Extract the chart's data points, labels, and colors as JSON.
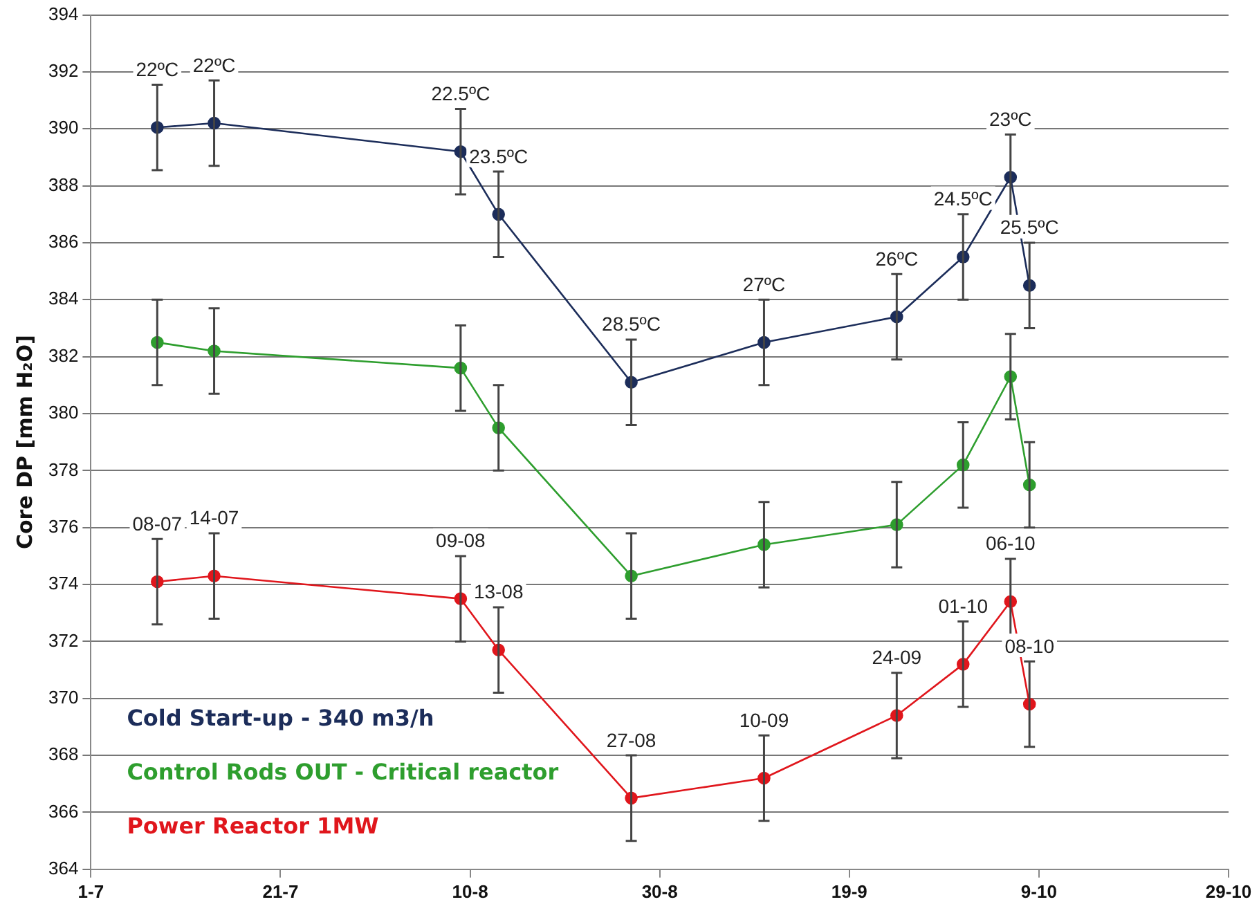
{
  "chart_data": {
    "type": "line",
    "ylabel": "Core DP [mm H₂O]",
    "x": [
      "--07-08",
      "--07-14",
      "--08-09",
      "--08-13",
      "--08-27",
      "--09-10",
      "--09-24",
      "--10-01",
      "--10-06",
      "--10-08"
    ],
    "series": [
      {
        "name": "Cold Start-up - 340 m3/h",
        "color": "#1c2d5a",
        "values": [
          390.05,
          390.2,
          389.2,
          387.0,
          381.1,
          382.5,
          383.4,
          385.5,
          388.3,
          384.5
        ],
        "errors": [
          1.5,
          1.5,
          1.5,
          1.5,
          1.5,
          1.5,
          1.5,
          1.5,
          1.5,
          1.5
        ]
      },
      {
        "name": "Control Rods OUT - Critical reactor",
        "color": "#2e9e2e",
        "values": [
          382.5,
          382.2,
          381.6,
          379.5,
          374.3,
          375.4,
          376.1,
          378.2,
          381.3,
          377.5
        ],
        "errors": [
          1.5,
          1.5,
          1.5,
          1.5,
          1.5,
          1.5,
          1.5,
          1.5,
          1.5,
          1.5
        ]
      },
      {
        "name": "Power Reactor 1MW",
        "color": "#e0161c",
        "values": [
          374.1,
          374.3,
          373.5,
          371.7,
          366.5,
          367.2,
          369.4,
          371.2,
          373.4,
          369.8
        ],
        "errors": [
          1.5,
          1.5,
          1.5,
          1.5,
          1.5,
          1.5,
          1.5,
          1.5,
          1.5,
          1.5
        ]
      }
    ],
    "xlim": [
      "--07-01",
      "--10-29"
    ],
    "xticks": [
      {
        "value": "--07-01",
        "label": "1-7"
      },
      {
        "value": "--07-21",
        "label": "21-7"
      },
      {
        "value": "--08-10",
        "label": "10-8"
      },
      {
        "value": "--08-30",
        "label": "30-8"
      },
      {
        "value": "--09-19",
        "label": "19-9"
      },
      {
        "value": "--10-09",
        "label": "9-10"
      },
      {
        "value": "--10-29",
        "label": "29-10"
      }
    ],
    "ylim": [
      364,
      394
    ],
    "yticks": [
      364,
      366,
      368,
      370,
      372,
      374,
      376,
      378,
      380,
      382,
      384,
      386,
      388,
      390,
      392,
      394
    ],
    "grid": "y",
    "legend": "bottom left",
    "marker": "circle",
    "line_style": "solid",
    "annotations": [
      {
        "text": "22ºC",
        "x": "--07-08",
        "y": 390.05
      },
      {
        "text": "22ºC",
        "x": "--07-14",
        "y": 390.2
      },
      {
        "text": "22.5ºC",
        "x": "--08-09",
        "y": 389.2
      },
      {
        "text": "23.5ºC",
        "x": "--08-13",
        "y": 387.0
      },
      {
        "text": "28.5ºC",
        "x": "--08-27",
        "y": 381.1
      },
      {
        "text": "27ºC",
        "x": "--09-10",
        "y": 382.5
      },
      {
        "text": "26ºC",
        "x": "--09-24",
        "y": 383.4
      },
      {
        "text": "24.5ºC",
        "x": "--10-01",
        "y": 385.5
      },
      {
        "text": "23ºC",
        "x": "--10-06",
        "y": 388.3
      },
      {
        "text": "25.5ºC",
        "x": "--10-08",
        "y": 384.5
      },
      {
        "text": "08-07",
        "x": "--07-08",
        "y": 374.1
      },
      {
        "text": "14-07",
        "x": "--07-14",
        "y": 374.3
      },
      {
        "text": "09-08",
        "x": "--08-09",
        "y": 373.5
      },
      {
        "text": "13-08",
        "x": "--08-13",
        "y": 371.7
      },
      {
        "text": "27-08",
        "x": "--08-27",
        "y": 366.5
      },
      {
        "text": "10-09",
        "x": "--09-10",
        "y": 367.2
      },
      {
        "text": "24-09",
        "x": "--09-24",
        "y": 369.4
      },
      {
        "text": "01-10",
        "x": "--10-01",
        "y": 371.2
      },
      {
        "text": "06-10",
        "x": "--10-06",
        "y": 373.4
      },
      {
        "text": "08-10",
        "x": "--10-08",
        "y": 369.8
      }
    ]
  }
}
